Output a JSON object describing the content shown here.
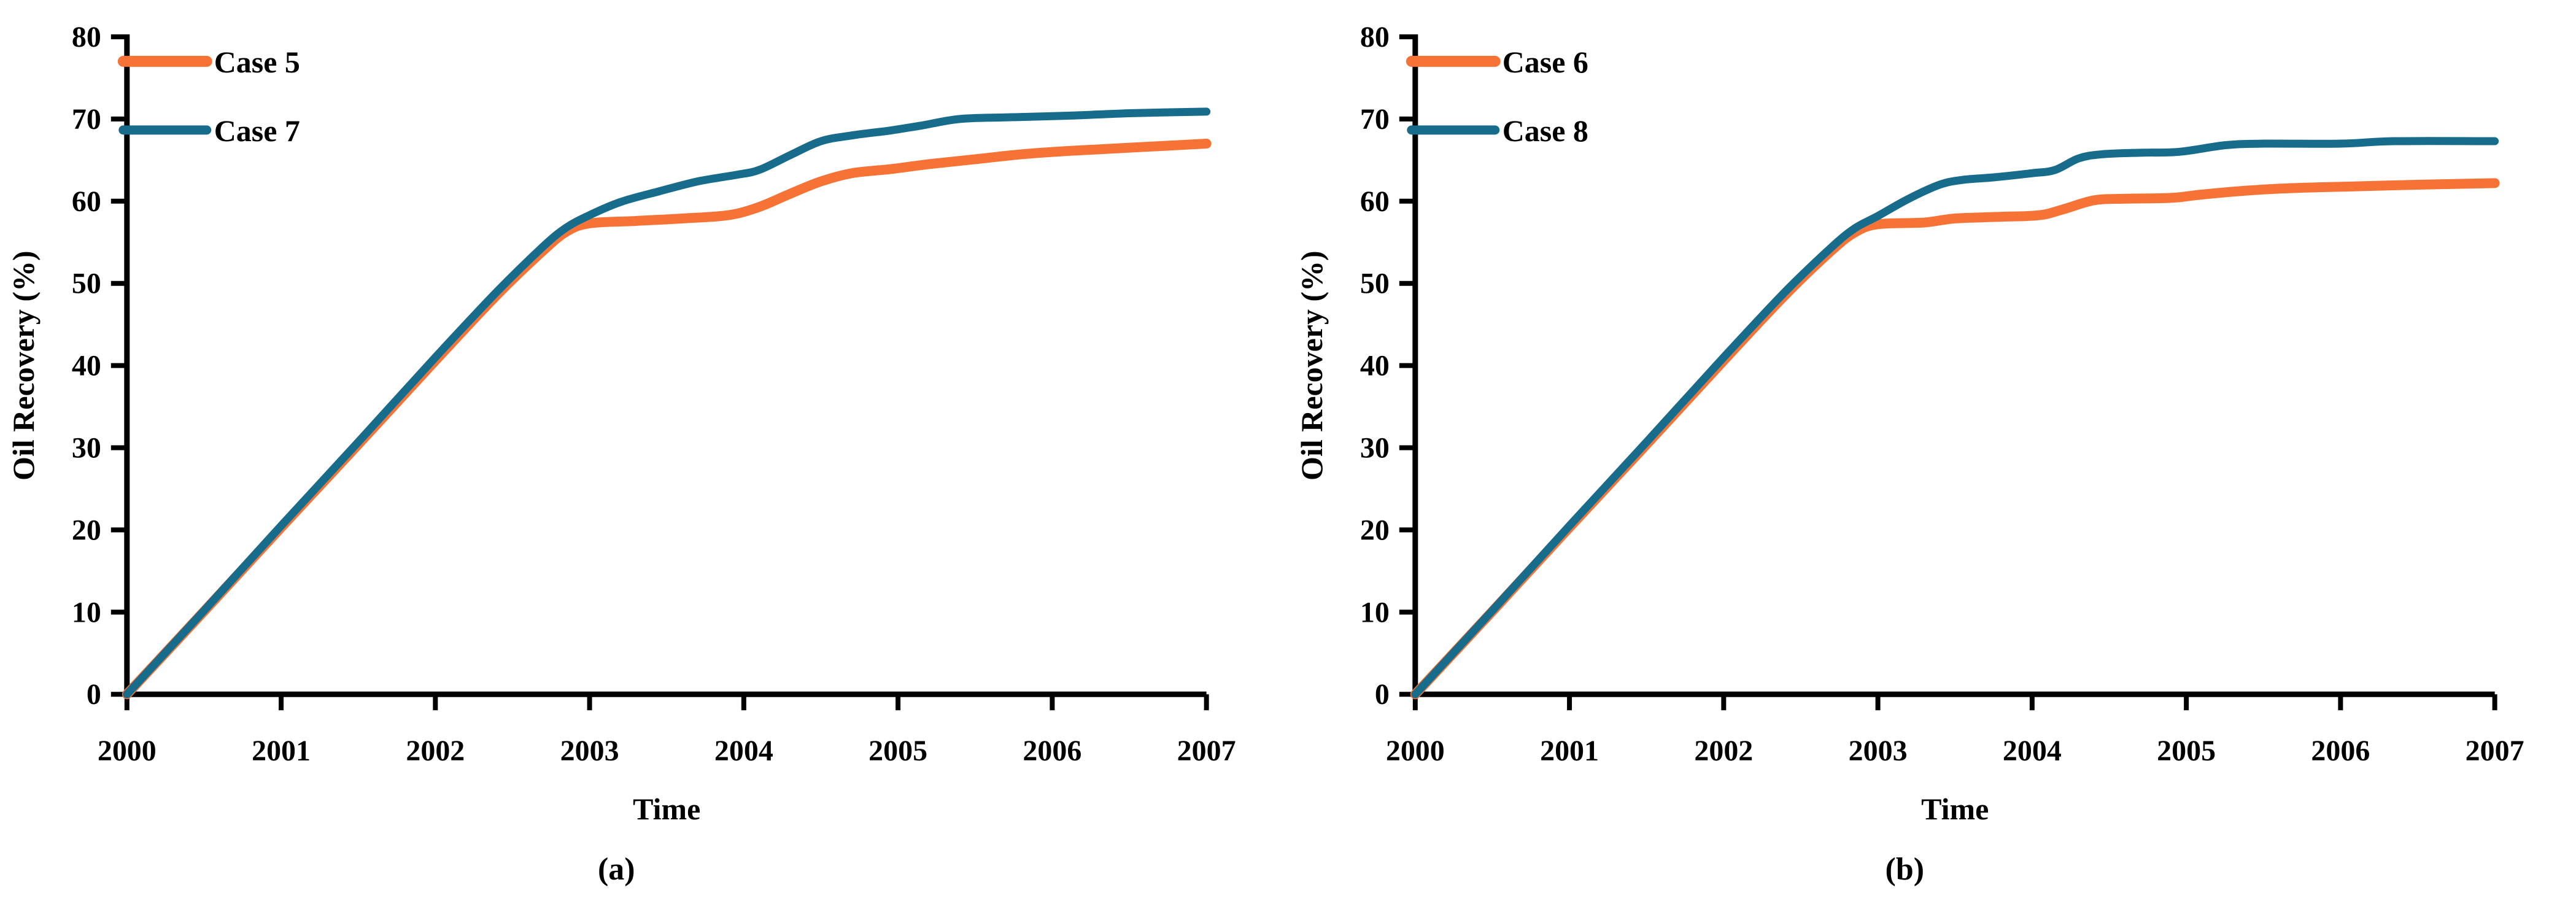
{
  "figure": {
    "background": "#ffffff",
    "text_color": "#000000",
    "axis_color": "#000000"
  },
  "chart_data": [
    {
      "type": "line",
      "panel_label": "(a)",
      "xlabel": "Time",
      "ylabel": "Oil Recovery (%)",
      "xlim": [
        2000,
        2007
      ],
      "ylim": [
        0,
        80
      ],
      "xticks": [
        2000,
        2001,
        2002,
        2003,
        2004,
        2005,
        2006,
        2007
      ],
      "yticks": [
        0,
        10,
        20,
        30,
        40,
        50,
        60,
        70,
        80
      ],
      "grid": false,
      "legend_position": "upper-left",
      "series": [
        {
          "name": "Case 5",
          "color": "#F77235",
          "linewidth": 8,
          "points": [
            [
              2000,
              0
            ],
            [
              2000.5,
              10.1
            ],
            [
              2001,
              20.3
            ],
            [
              2001.5,
              30.4
            ],
            [
              2002,
              40.6
            ],
            [
              2002.4,
              48.6
            ],
            [
              2002.7,
              54
            ],
            [
              2002.85,
              56.3
            ],
            [
              2003,
              57.3
            ],
            [
              2003.3,
              57.6
            ],
            [
              2003.6,
              57.9
            ],
            [
              2003.9,
              58.3
            ],
            [
              2004.1,
              59.3
            ],
            [
              2004.3,
              60.9
            ],
            [
              2004.5,
              62.4
            ],
            [
              2004.7,
              63.4
            ],
            [
              2004.95,
              63.9
            ],
            [
              2005.2,
              64.5
            ],
            [
              2005.5,
              65.1
            ],
            [
              2005.8,
              65.7
            ],
            [
              2006.1,
              66.1
            ],
            [
              2006.5,
              66.5
            ],
            [
              2007,
              67
            ]
          ]
        },
        {
          "name": "Case 7",
          "color": "#176C8C",
          "linewidth": 6.5,
          "points": [
            [
              2000,
              0
            ],
            [
              2000.5,
              10.2
            ],
            [
              2001,
              20.5
            ],
            [
              2001.5,
              30.7
            ],
            [
              2002,
              41
            ],
            [
              2002.4,
              49
            ],
            [
              2002.7,
              54.5
            ],
            [
              2002.85,
              56.8
            ],
            [
              2003,
              58.3
            ],
            [
              2003.2,
              59.9
            ],
            [
              2003.45,
              61.2
            ],
            [
              2003.7,
              62.4
            ],
            [
              2003.95,
              63.2
            ],
            [
              2004.1,
              63.8
            ],
            [
              2004.3,
              65.6
            ],
            [
              2004.5,
              67.3
            ],
            [
              2004.7,
              68
            ],
            [
              2004.95,
              68.6
            ],
            [
              2005.15,
              69.2
            ],
            [
              2005.4,
              70
            ],
            [
              2005.7,
              70.2
            ],
            [
              2006.1,
              70.4
            ],
            [
              2006.5,
              70.7
            ],
            [
              2007,
              70.9
            ]
          ]
        }
      ]
    },
    {
      "type": "line",
      "panel_label": "(b)",
      "xlabel": "Time",
      "ylabel": "Oil Recovery (%)",
      "xlim": [
        2000,
        2007
      ],
      "ylim": [
        0,
        80
      ],
      "xticks": [
        2000,
        2001,
        2002,
        2003,
        2004,
        2005,
        2006,
        2007
      ],
      "yticks": [
        0,
        10,
        20,
        30,
        40,
        50,
        60,
        70,
        80
      ],
      "grid": false,
      "legend_position": "upper-left",
      "series": [
        {
          "name": "Case 6",
          "color": "#F77235",
          "linewidth": 8,
          "points": [
            [
              2000,
              0
            ],
            [
              2000.5,
              10.1
            ],
            [
              2001,
              20.3
            ],
            [
              2001.5,
              30.4
            ],
            [
              2002,
              40.6
            ],
            [
              2002.4,
              48.6
            ],
            [
              2002.7,
              54
            ],
            [
              2002.85,
              56.2
            ],
            [
              2003,
              57.2
            ],
            [
              2003.3,
              57.4
            ],
            [
              2003.5,
              57.9
            ],
            [
              2003.8,
              58.1
            ],
            [
              2004.05,
              58.3
            ],
            [
              2004.2,
              59
            ],
            [
              2004.4,
              60.1
            ],
            [
              2004.6,
              60.3
            ],
            [
              2004.9,
              60.4
            ],
            [
              2005.1,
              60.8
            ],
            [
              2005.4,
              61.3
            ],
            [
              2005.7,
              61.6
            ],
            [
              2006.1,
              61.8
            ],
            [
              2006.5,
              62
            ],
            [
              2007,
              62.2
            ]
          ]
        },
        {
          "name": "Case 8",
          "color": "#176C8C",
          "linewidth": 6.5,
          "points": [
            [
              2000,
              0
            ],
            [
              2000.5,
              10.2
            ],
            [
              2001,
              20.5
            ],
            [
              2001.5,
              30.7
            ],
            [
              2002,
              41
            ],
            [
              2002.4,
              49
            ],
            [
              2002.7,
              54.4
            ],
            [
              2002.85,
              56.7
            ],
            [
              2003,
              58.2
            ],
            [
              2003.2,
              60.3
            ],
            [
              2003.4,
              62
            ],
            [
              2003.55,
              62.6
            ],
            [
              2003.75,
              62.9
            ],
            [
              2004,
              63.4
            ],
            [
              2004.15,
              63.8
            ],
            [
              2004.3,
              65.2
            ],
            [
              2004.45,
              65.7
            ],
            [
              2004.7,
              65.9
            ],
            [
              2004.95,
              66
            ],
            [
              2005.25,
              66.8
            ],
            [
              2005.5,
              67
            ],
            [
              2006,
              67
            ],
            [
              2006.35,
              67.3
            ],
            [
              2007,
              67.3
            ]
          ]
        }
      ]
    }
  ]
}
